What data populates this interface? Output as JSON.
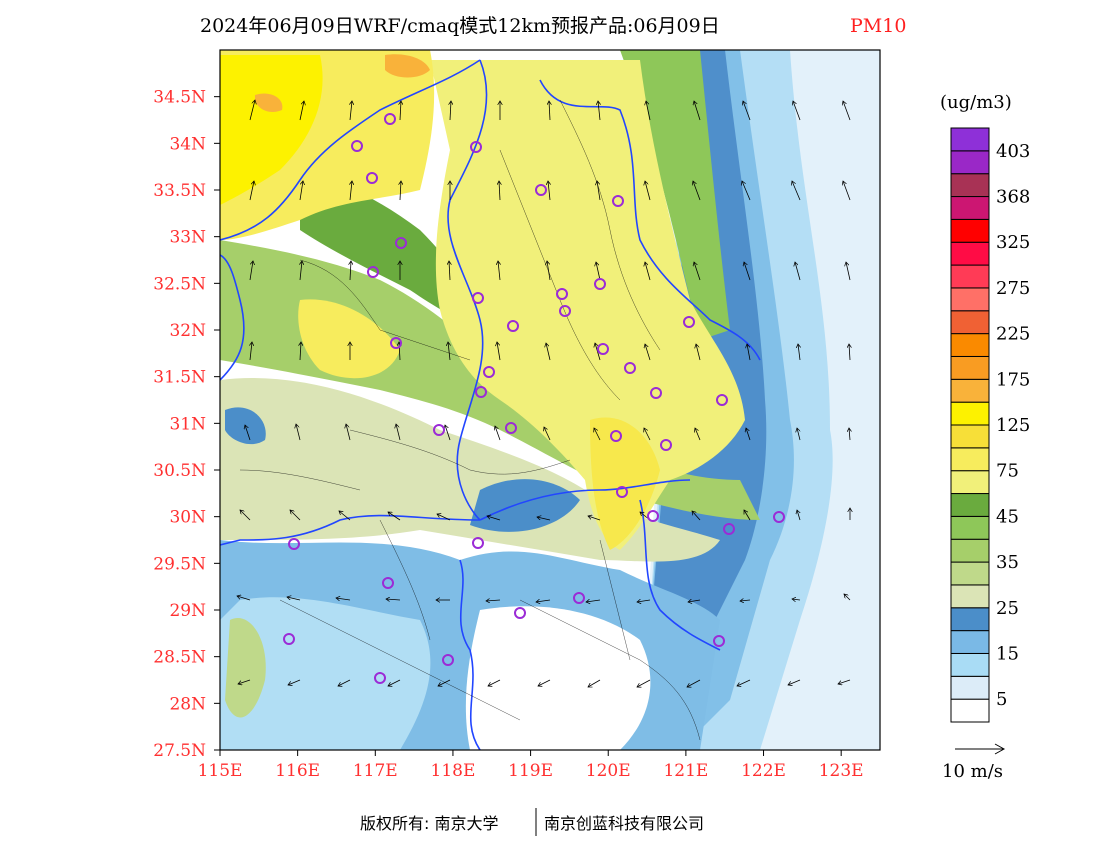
{
  "header": {
    "title": "2024年06月09日WRF/cmaq模式12km预报产品:06月09日",
    "variable": "PM10"
  },
  "map": {
    "lat_labels": [
      "34.5N",
      "34N",
      "33.5N",
      "33N",
      "32.5N",
      "32N",
      "31.5N",
      "31N",
      "30.5N",
      "30N",
      "29.5N",
      "29N",
      "28.5N",
      "28N",
      "27.5N"
    ],
    "lon_labels": [
      "115E",
      "116E",
      "117E",
      "118E",
      "119E",
      "120E",
      "121E",
      "122E",
      "123E"
    ],
    "lat_range": [
      27.5,
      35.0
    ],
    "lon_range": [
      115.0,
      123.5
    ],
    "colors": {
      "land_yellow": "#f4f17e",
      "yellow_deep": "#f7e84c",
      "orange": "#f8b442",
      "green_light": "#c6df82",
      "green_mid": "#8ec759",
      "green_dark": "#6aab3e",
      "grey_green": "#dbe4b6",
      "blue_light": "#b1def4",
      "blue_mid": "#7fbde6",
      "blue_dark": "#4a8ecb",
      "boundary_blue": "#2246ff",
      "county_line": "#000000",
      "station_ring": "#9b2bd6"
    }
  },
  "legend": {
    "unit": "(ug/m3)",
    "levels": [
      "403",
      "368",
      "325",
      "275",
      "225",
      "175",
      "125",
      "75",
      "45",
      "35",
      "25",
      "15",
      "5"
    ],
    "colors": [
      "#ffffff",
      "#dcecf8",
      "#a9dcf5",
      "#7ab9e6",
      "#4b8ec9",
      "#dbe4b6",
      "#bfd98a",
      "#a6cf6a",
      "#8ec759",
      "#6aab3e",
      "#f1f07a",
      "#f7ec5d",
      "#f7df38",
      "#fdf200",
      "#f9b23a",
      "#f99c22",
      "#fa8a00",
      "#f06134",
      "#ff7067",
      "#ff3b56",
      "#ff0c45",
      "#ff0000",
      "#cc1672",
      "#a83255",
      "#9a28c7",
      "#8e30d8"
    ],
    "arrow_label": "10 m/s"
  },
  "footer": {
    "left": "版权所有: 南京大学",
    "right": "南京创蓝科技有限公司"
  }
}
